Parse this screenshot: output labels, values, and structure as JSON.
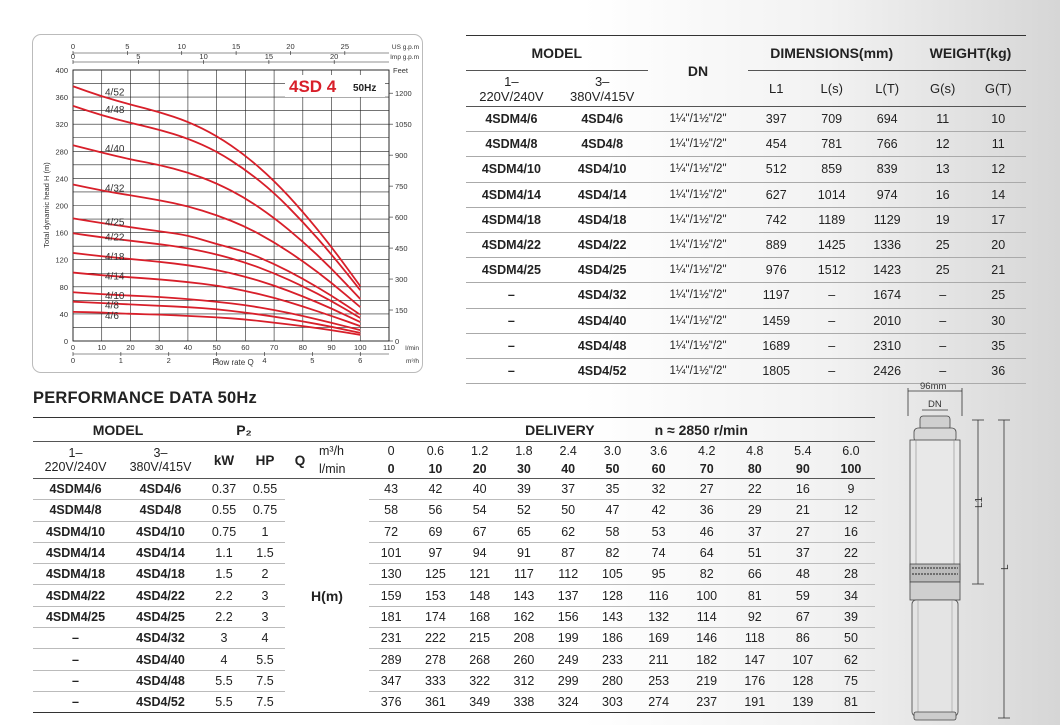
{
  "chart": {
    "title": "4SD 4",
    "subtitle": "50Hz",
    "y_axis_label": "Total dynamic head H (m)",
    "x_axis_label": "Flow rate Q",
    "top_units_us": "US g.p.m",
    "top_units_imp": "Imp g.p.m",
    "right_units": "Feet",
    "bottom_units_lmin": "l/min",
    "bottom_units_m3h": "m³/h",
    "curve_color": "#d81f2a",
    "left_ticks": [
      "400",
      "360",
      "320",
      "280",
      "240",
      "200",
      "160",
      "120",
      "80",
      "40",
      "0"
    ],
    "right_ticks": [
      "1200",
      "1050",
      "900",
      "750",
      "600",
      "450",
      "300",
      "150",
      "0"
    ],
    "us_ticks": [
      "0",
      "5",
      "10",
      "15",
      "20",
      "25"
    ],
    "imp_ticks": [
      "0",
      "5",
      "10",
      "15",
      "20"
    ],
    "lmin_ticks": [
      "0",
      "10",
      "20",
      "30",
      "40",
      "50",
      "60",
      "70",
      "80",
      "90",
      "100",
      "110"
    ],
    "m3h_ticks": [
      "0",
      "1",
      "2",
      "3",
      "4",
      "5",
      "6"
    ]
  },
  "chart_data": {
    "type": "line",
    "title": "4SD 4 50Hz",
    "xlabel": "Flow rate Q (l/min)",
    "ylabel": "Total dynamic head H (m)",
    "xlim": [
      0,
      110
    ],
    "ylim": [
      0,
      400
    ],
    "x": [
      0,
      10,
      20,
      30,
      40,
      50,
      60,
      70,
      80,
      90,
      100
    ],
    "series": [
      {
        "name": "4/52",
        "values": [
          376,
          361,
          349,
          338,
          324,
          303,
          274,
          237,
          191,
          139,
          81
        ]
      },
      {
        "name": "4/48",
        "values": [
          347,
          333,
          322,
          312,
          299,
          280,
          253,
          219,
          176,
          128,
          75
        ]
      },
      {
        "name": "4/40",
        "values": [
          289,
          278,
          268,
          260,
          249,
          233,
          211,
          182,
          147,
          107,
          62
        ]
      },
      {
        "name": "4/32",
        "values": [
          231,
          222,
          215,
          208,
          199,
          186,
          169,
          146,
          118,
          86,
          50
        ]
      },
      {
        "name": "4/25",
        "values": [
          181,
          174,
          168,
          162,
          156,
          143,
          132,
          114,
          92,
          67,
          39
        ]
      },
      {
        "name": "4/22",
        "values": [
          159,
          153,
          148,
          143,
          137,
          128,
          116,
          100,
          81,
          59,
          34
        ]
      },
      {
        "name": "4/18",
        "values": [
          130,
          125,
          121,
          117,
          112,
          105,
          95,
          82,
          66,
          48,
          28
        ]
      },
      {
        "name": "4/14",
        "values": [
          101,
          97,
          94,
          91,
          87,
          82,
          74,
          64,
          51,
          37,
          22
        ]
      },
      {
        "name": "4/10",
        "values": [
          72,
          69,
          67,
          65,
          62,
          58,
          53,
          46,
          37,
          27,
          16
        ]
      },
      {
        "name": "4/8",
        "values": [
          58,
          56,
          54,
          52,
          50,
          47,
          42,
          36,
          29,
          21,
          12
        ]
      },
      {
        "name": "4/6",
        "values": [
          43,
          42,
          40,
          39,
          37,
          35,
          32,
          27,
          22,
          16,
          9
        ]
      }
    ]
  },
  "dims": {
    "h_model": "MODEL",
    "h_dn": "DN",
    "h_dimensions": "DIMENSIONS(mm)",
    "h_weight": "WEIGHT(kg)",
    "h_1ph_a": "1–",
    "h_1ph_b": "220V/240V",
    "h_3ph_a": "3–",
    "h_3ph_b": "380V/415V",
    "h_l1": "L1",
    "h_ls": "L(s)",
    "h_lt": "L(T)",
    "h_gs": "G(s)",
    "h_gt": "G(T)",
    "rows": [
      {
        "m1": "4SDM4/6",
        "m3": "4SD4/6",
        "dn": "1¼\"/1½\"/2\"",
        "l1": "397",
        "ls": "709",
        "lt": "694",
        "gs": "11",
        "gt": "10"
      },
      {
        "m1": "4SDM4/8",
        "m3": "4SD4/8",
        "dn": "1¼\"/1½\"/2\"",
        "l1": "454",
        "ls": "781",
        "lt": "766",
        "gs": "12",
        "gt": "11"
      },
      {
        "m1": "4SDM4/10",
        "m3": "4SD4/10",
        "dn": "1¼\"/1½\"/2\"",
        "l1": "512",
        "ls": "859",
        "lt": "839",
        "gs": "13",
        "gt": "12"
      },
      {
        "m1": "4SDM4/14",
        "m3": "4SD4/14",
        "dn": "1¼\"/1½\"/2\"",
        "l1": "627",
        "ls": "1014",
        "lt": "974",
        "gs": "16",
        "gt": "14"
      },
      {
        "m1": "4SDM4/18",
        "m3": "4SD4/18",
        "dn": "1¼\"/1½\"/2\"",
        "l1": "742",
        "ls": "1189",
        "lt": "1129",
        "gs": "19",
        "gt": "17"
      },
      {
        "m1": "4SDM4/22",
        "m3": "4SD4/22",
        "dn": "1¼\"/1½\"/2\"",
        "l1": "889",
        "ls": "1425",
        "lt": "1336",
        "gs": "25",
        "gt": "20"
      },
      {
        "m1": "4SDM4/25",
        "m3": "4SD4/25",
        "dn": "1¼\"/1½\"/2\"",
        "l1": "976",
        "ls": "1512",
        "lt": "1423",
        "gs": "25",
        "gt": "21"
      },
      {
        "m1": "–",
        "m3": "4SD4/32",
        "dn": "1¼\"/1½\"/2\"",
        "l1": "1197",
        "ls": "–",
        "lt": "1674",
        "gs": "–",
        "gt": "25"
      },
      {
        "m1": "–",
        "m3": "4SD4/40",
        "dn": "1¼\"/1½\"/2\"",
        "l1": "1459",
        "ls": "–",
        "lt": "2010",
        "gs": "–",
        "gt": "30"
      },
      {
        "m1": "–",
        "m3": "4SD4/48",
        "dn": "1¼\"/1½\"/2\"",
        "l1": "1689",
        "ls": "–",
        "lt": "2310",
        "gs": "–",
        "gt": "35"
      },
      {
        "m1": "–",
        "m3": "4SD4/52",
        "dn": "1¼\"/1½\"/2\"",
        "l1": "1805",
        "ls": "–",
        "lt": "2426",
        "gs": "–",
        "gt": "36"
      }
    ]
  },
  "perf": {
    "title": "PERFORMANCE DATA 50Hz",
    "h_model": "MODEL",
    "h_p2": "P₂",
    "h_delivery": "DELIVERY",
    "h_speed": "n ≈ 2850 r/min",
    "h_1ph_a": "1–",
    "h_1ph_b": "220V/240V",
    "h_3ph_a": "3–",
    "h_3ph_b": "380V/415V",
    "h_kw": "kW",
    "h_hp": "HP",
    "h_q": "Q",
    "h_m3h": "m³/h",
    "h_lmin": "l/min",
    "h_hm": "H(m)",
    "q_m3h": [
      "0",
      "0.6",
      "1.2",
      "1.8",
      "2.4",
      "3.0",
      "3.6",
      "4.2",
      "4.8",
      "5.4",
      "6.0"
    ],
    "q_lmin": [
      "0",
      "10",
      "20",
      "30",
      "40",
      "50",
      "60",
      "70",
      "80",
      "90",
      "100"
    ],
    "rows": [
      {
        "m1": "4SDM4/6",
        "m3": "4SD4/6",
        "kw": "0.37",
        "hp": "0.55",
        "h": [
          "43",
          "42",
          "40",
          "39",
          "37",
          "35",
          "32",
          "27",
          "22",
          "16",
          "9"
        ]
      },
      {
        "m1": "4SDM4/8",
        "m3": "4SD4/8",
        "kw": "0.55",
        "hp": "0.75",
        "h": [
          "58",
          "56",
          "54",
          "52",
          "50",
          "47",
          "42",
          "36",
          "29",
          "21",
          "12"
        ]
      },
      {
        "m1": "4SDM4/10",
        "m3": "4SD4/10",
        "kw": "0.75",
        "hp": "1",
        "h": [
          "72",
          "69",
          "67",
          "65",
          "62",
          "58",
          "53",
          "46",
          "37",
          "27",
          "16"
        ]
      },
      {
        "m1": "4SDM4/14",
        "m3": "4SD4/14",
        "kw": "1.1",
        "hp": "1.5",
        "h": [
          "101",
          "97",
          "94",
          "91",
          "87",
          "82",
          "74",
          "64",
          "51",
          "37",
          "22"
        ]
      },
      {
        "m1": "4SDM4/18",
        "m3": "4SD4/18",
        "kw": "1.5",
        "hp": "2",
        "h": [
          "130",
          "125",
          "121",
          "117",
          "112",
          "105",
          "95",
          "82",
          "66",
          "48",
          "28"
        ]
      },
      {
        "m1": "4SDM4/22",
        "m3": "4SD4/22",
        "kw": "2.2",
        "hp": "3",
        "h": [
          "159",
          "153",
          "148",
          "143",
          "137",
          "128",
          "116",
          "100",
          "81",
          "59",
          "34"
        ]
      },
      {
        "m1": "4SDM4/25",
        "m3": "4SD4/25",
        "kw": "2.2",
        "hp": "3",
        "h": [
          "181",
          "174",
          "168",
          "162",
          "156",
          "143",
          "132",
          "114",
          "92",
          "67",
          "39"
        ]
      },
      {
        "m1": "–",
        "m3": "4SD4/32",
        "kw": "3",
        "hp": "4",
        "h": [
          "231",
          "222",
          "215",
          "208",
          "199",
          "186",
          "169",
          "146",
          "118",
          "86",
          "50"
        ]
      },
      {
        "m1": "–",
        "m3": "4SD4/40",
        "kw": "4",
        "hp": "5.5",
        "h": [
          "289",
          "278",
          "268",
          "260",
          "249",
          "233",
          "211",
          "182",
          "147",
          "107",
          "62"
        ]
      },
      {
        "m1": "–",
        "m3": "4SD4/48",
        "kw": "5.5",
        "hp": "7.5",
        "h": [
          "347",
          "333",
          "322",
          "312",
          "299",
          "280",
          "253",
          "219",
          "176",
          "128",
          "75"
        ]
      },
      {
        "m1": "–",
        "m3": "4SD4/52",
        "kw": "5.5",
        "hp": "7.5",
        "h": [
          "376",
          "361",
          "349",
          "338",
          "324",
          "303",
          "274",
          "237",
          "191",
          "139",
          "81"
        ]
      }
    ]
  },
  "pump": {
    "width_label": "96mm",
    "dn_label": "DN",
    "l1_label": "L1",
    "l_label": "L"
  }
}
